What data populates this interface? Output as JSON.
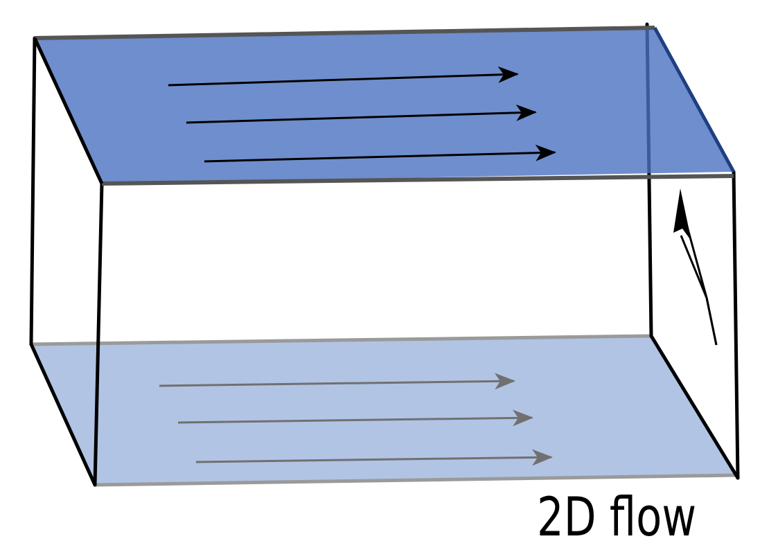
{
  "caption": "2D flow",
  "colors": {
    "top_plane_fill": "#4a72c0",
    "top_plane_edge": "#555555",
    "bottom_plane_fill": "#a6bce0",
    "bottom_plane_edge": "#9a9a9a",
    "box_edge": "#000000",
    "top_arrows": "#000000",
    "bottom_arrows": "#707070"
  },
  "top_plane_flow_arrows": 3,
  "bottom_plane_flow_arrows": 3
}
